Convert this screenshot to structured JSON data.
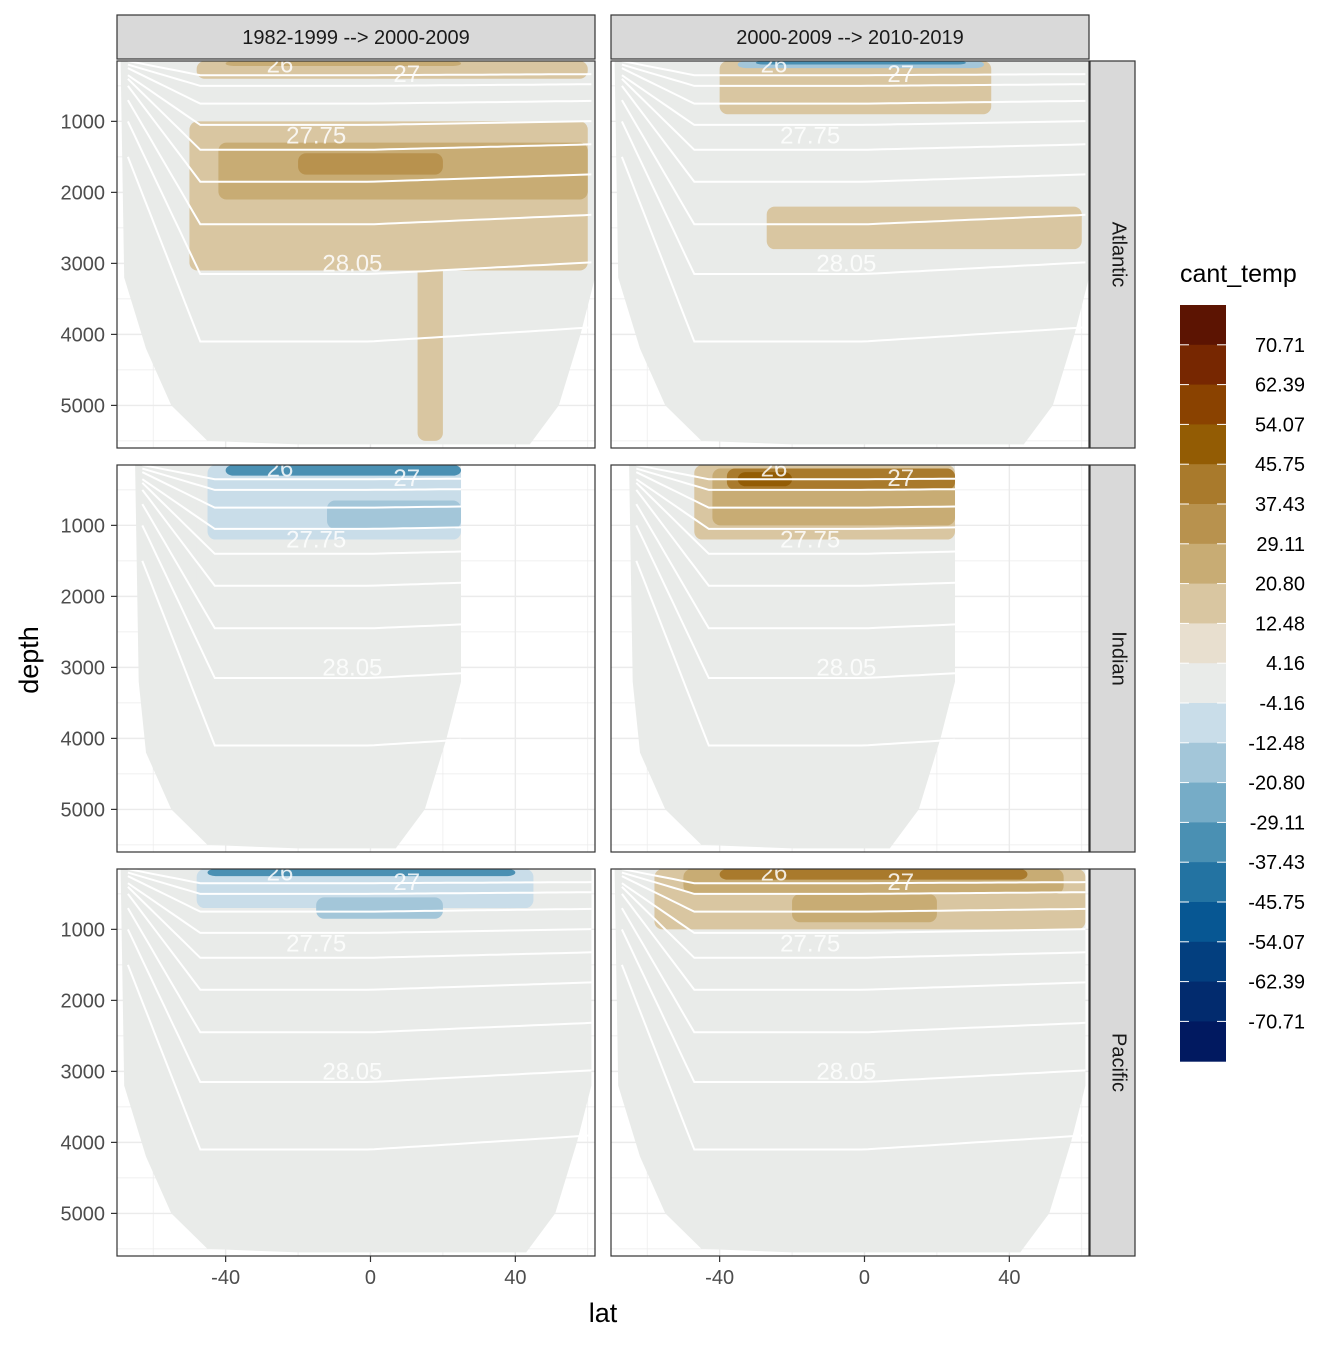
{
  "chart_data": {
    "type": "heatmap",
    "title": "",
    "xlabel": "lat",
    "ylabel": "depth",
    "column_facets": [
      "1982-1999 --> 2000-2009",
      "2000-2009 --> 2010-2019"
    ],
    "row_facets": [
      "Atlantic",
      "Indian",
      "Pacific"
    ],
    "xlim": [
      -70,
      62
    ],
    "ylim": [
      5600,
      150
    ],
    "x_ticks": [
      -40,
      0,
      40
    ],
    "x_tick_labels": [
      "-40",
      "0",
      "40"
    ],
    "y_ticks": [
      1000,
      2000,
      3000,
      4000,
      5000
    ],
    "y_tick_labels": [
      "1000",
      "2000",
      "3000",
      "4000",
      "5000"
    ],
    "y_reversed": true,
    "grid": true,
    "legend": {
      "title": "cant_temp",
      "position": "right",
      "labels": [
        "70.71",
        "62.39",
        "54.07",
        "45.75",
        "37.43",
        "29.11",
        "20.80",
        "12.48",
        "4.16",
        "-4.16",
        "-12.48",
        "-20.80",
        "-29.11",
        "-37.43",
        "-45.75",
        "-54.07",
        "-62.39",
        "-70.71"
      ],
      "colors": [
        "#5c1402",
        "#772701",
        "#8a4200",
        "#935c04",
        "#a97a2c",
        "#b8924e",
        "#c8ac74",
        "#d9c6a1",
        "#e8dfcf",
        "#e9ebe9",
        "#c9dde9",
        "#a3c6d9",
        "#76acc7",
        "#4a90b3",
        "#2373a2",
        "#075793",
        "#033f7f",
        "#022b6e",
        "#011960"
      ]
    },
    "isopycnal_labels": [
      "26",
      "27",
      "27.75",
      "28.05"
    ],
    "panels": [
      {
        "basin": "Atlantic",
        "period": "1982-1999 --> 2000-2009",
        "bands": [
          {
            "class": "12.48",
            "x": [
              -48,
              60
            ],
            "depth": [
              150,
              400
            ]
          },
          {
            "class": "20.80",
            "x": [
              -40,
              25
            ],
            "depth": [
              150,
              220
            ]
          },
          {
            "class": "12.48",
            "x": [
              -50,
              60
            ],
            "depth": [
              1000,
              3100
            ]
          },
          {
            "class": "20.80",
            "x": [
              -42,
              60
            ],
            "depth": [
              1300,
              2100
            ]
          },
          {
            "class": "29.11",
            "x": [
              -20,
              20
            ],
            "depth": [
              1450,
              1750
            ]
          },
          {
            "class": "12.48",
            "x": [
              13,
              20
            ],
            "depth": [
              3000,
              5500
            ]
          }
        ]
      },
      {
        "basin": "Atlantic",
        "period": "2000-2009 --> 2010-2019",
        "bands": [
          {
            "class": "12.48",
            "x": [
              -40,
              35
            ],
            "depth": [
              150,
              900
            ]
          },
          {
            "class": "-20.80",
            "x": [
              -35,
              33
            ],
            "depth": [
              150,
              250
            ]
          },
          {
            "class": "-37.43",
            "x": [
              -30,
              28
            ],
            "depth": [
              150,
              200
            ]
          },
          {
            "class": "12.48",
            "x": [
              -27,
              60
            ],
            "depth": [
              2200,
              2800
            ]
          }
        ]
      },
      {
        "basin": "Indian",
        "period": "1982-1999 --> 2000-2009",
        "bands": [
          {
            "class": "-4.16",
            "x": [
              -48,
              25
            ],
            "depth": [
              150,
              1900
            ]
          },
          {
            "class": "-12.48",
            "x": [
              -45,
              25
            ],
            "depth": [
              150,
              1200
            ]
          },
          {
            "class": "-20.80",
            "x": [
              -12,
              25
            ],
            "depth": [
              650,
              1050
            ]
          },
          {
            "class": "-37.43",
            "x": [
              -40,
              25
            ],
            "depth": [
              150,
              300
            ]
          }
        ]
      },
      {
        "basin": "Indian",
        "period": "2000-2009 --> 2010-2019",
        "bands": [
          {
            "class": "12.48",
            "x": [
              -47,
              25
            ],
            "depth": [
              150,
              1200
            ]
          },
          {
            "class": "20.80",
            "x": [
              -42,
              25
            ],
            "depth": [
              200,
              1000
            ]
          },
          {
            "class": "37.43",
            "x": [
              -38,
              25
            ],
            "depth": [
              200,
              500
            ]
          },
          {
            "class": "45.75",
            "x": [
              -35,
              -20
            ],
            "depth": [
              250,
              450
            ]
          }
        ]
      },
      {
        "basin": "Pacific",
        "period": "1982-1999 --> 2000-2009",
        "bands": [
          {
            "class": "-4.16",
            "x": [
              -55,
              61
            ],
            "depth": [
              150,
              900
            ]
          },
          {
            "class": "-12.48",
            "x": [
              -48,
              45
            ],
            "depth": [
              150,
              700
            ]
          },
          {
            "class": "-20.80",
            "x": [
              -15,
              20
            ],
            "depth": [
              550,
              850
            ]
          },
          {
            "class": "-37.43",
            "x": [
              -45,
              40
            ],
            "depth": [
              150,
              250
            ]
          }
        ]
      },
      {
        "basin": "Pacific",
        "period": "2000-2009 --> 2010-2019",
        "bands": [
          {
            "class": "12.48",
            "x": [
              -58,
              61
            ],
            "depth": [
              150,
              1000
            ]
          },
          {
            "class": "20.80",
            "x": [
              -50,
              55
            ],
            "depth": [
              150,
              500
            ]
          },
          {
            "class": "20.80",
            "x": [
              -20,
              20
            ],
            "depth": [
              500,
              900
            ]
          },
          {
            "class": "37.43",
            "x": [
              -40,
              45
            ],
            "depth": [
              150,
              300
            ]
          }
        ]
      }
    ]
  }
}
